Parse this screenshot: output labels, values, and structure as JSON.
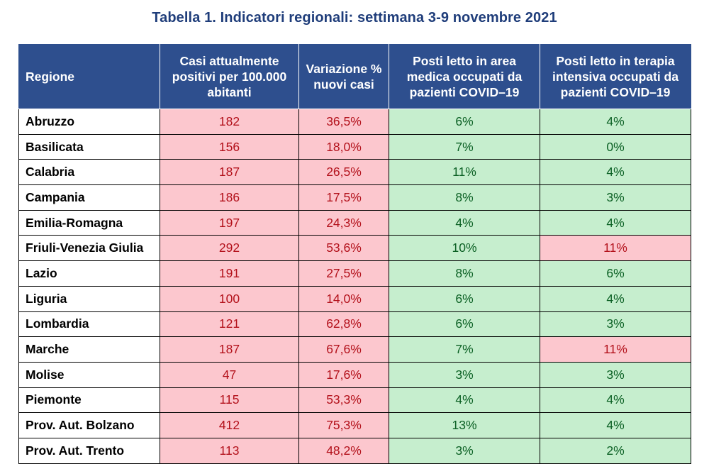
{
  "title": "Tabella 1. Indicatori regionali: settimana 3-9 novembre 2021",
  "colors": {
    "header_bg": "#2e4f8e",
    "title_text": "#1f3d7a",
    "bad_bg": "#fcc7ce",
    "bad_text": "#b3111b",
    "ok_bg": "#c6eece",
    "ok_text": "#0b6024"
  },
  "table": {
    "headers": [
      "Regione",
      "Casi attualmente positivi per 100.000 abitanti",
      "Variazione % nuovi casi",
      "Posti letto in area medica occupati da pazienti COVID–19",
      "Posti letto in terapia intensiva occupati da pazienti COVID–19"
    ],
    "rows": [
      {
        "region": "Abruzzo",
        "cases": "182",
        "variation": "36,5%",
        "medical": "6%",
        "icu": "4%",
        "icu_status": "ok"
      },
      {
        "region": "Basilicata",
        "cases": "156",
        "variation": "18,0%",
        "medical": "7%",
        "icu": "0%",
        "icu_status": "ok"
      },
      {
        "region": "Calabria",
        "cases": "187",
        "variation": "26,5%",
        "medical": "11%",
        "icu": "4%",
        "icu_status": "ok"
      },
      {
        "region": "Campania",
        "cases": "186",
        "variation": "17,5%",
        "medical": "8%",
        "icu": "3%",
        "icu_status": "ok"
      },
      {
        "region": "Emilia-Romagna",
        "cases": "197",
        "variation": "24,3%",
        "medical": "4%",
        "icu": "4%",
        "icu_status": "ok"
      },
      {
        "region": "Friuli-Venezia Giulia",
        "cases": "292",
        "variation": "53,6%",
        "medical": "10%",
        "icu": "11%",
        "icu_status": "bad"
      },
      {
        "region": "Lazio",
        "cases": "191",
        "variation": "27,5%",
        "medical": "8%",
        "icu": "6%",
        "icu_status": "ok"
      },
      {
        "region": "Liguria",
        "cases": "100",
        "variation": "14,0%",
        "medical": "6%",
        "icu": "4%",
        "icu_status": "ok"
      },
      {
        "region": "Lombardia",
        "cases": "121",
        "variation": "62,8%",
        "medical": "6%",
        "icu": "3%",
        "icu_status": "ok"
      },
      {
        "region": "Marche",
        "cases": "187",
        "variation": "67,6%",
        "medical": "7%",
        "icu": "11%",
        "icu_status": "bad"
      },
      {
        "region": "Molise",
        "cases": "47",
        "variation": "17,6%",
        "medical": "3%",
        "icu": "3%",
        "icu_status": "ok"
      },
      {
        "region": "Piemonte",
        "cases": "115",
        "variation": "53,3%",
        "medical": "4%",
        "icu": "4%",
        "icu_status": "ok"
      },
      {
        "region": "Prov. Aut. Bolzano",
        "cases": "412",
        "variation": "75,3%",
        "medical": "13%",
        "icu": "4%",
        "icu_status": "ok"
      },
      {
        "region": "Prov. Aut. Trento",
        "cases": "113",
        "variation": "48,2%",
        "medical": "3%",
        "icu": "2%",
        "icu_status": "ok"
      }
    ]
  }
}
